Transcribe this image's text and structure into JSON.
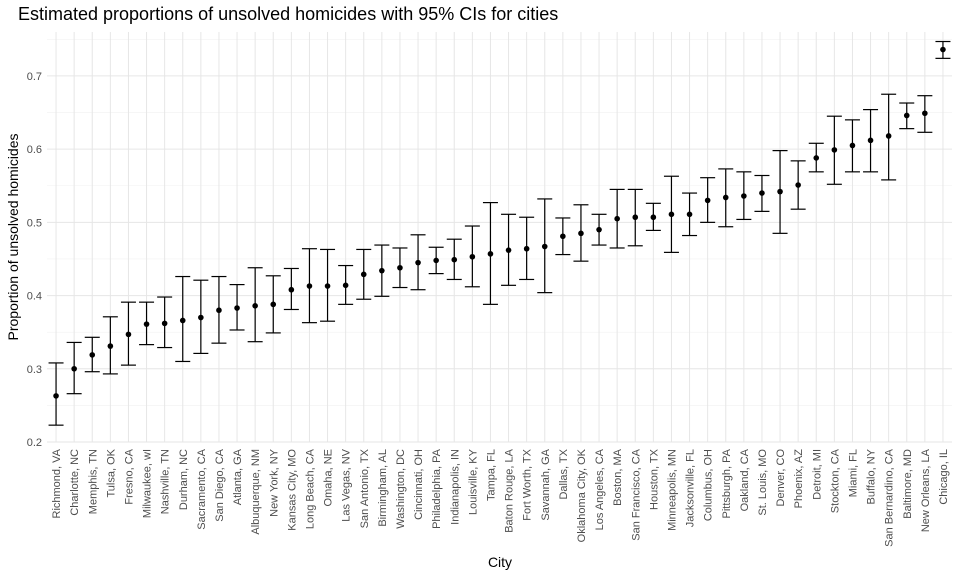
{
  "chart_data": {
    "type": "scatter",
    "title": "Estimated proportions of unsolved homicides with 95% CIs for cities",
    "xlabel": "City",
    "ylabel": "Proportion of unsolved homicides",
    "ylim": [
      0.2,
      0.76
    ],
    "yticks": [
      0.2,
      0.3,
      0.4,
      0.5,
      0.6,
      0.7
    ],
    "ytick_labels": [
      "0.2",
      "0.3",
      "0.4",
      "0.5",
      "0.6",
      "0.7"
    ],
    "grid": true,
    "error_bars": "95% CI",
    "points": [
      {
        "city": "Richmond, VA",
        "estimate": 0.263,
        "lower": 0.223,
        "upper": 0.308
      },
      {
        "city": "Charlotte, NC",
        "estimate": 0.3,
        "lower": 0.266,
        "upper": 0.336
      },
      {
        "city": "Memphis, TN",
        "estimate": 0.319,
        "lower": 0.296,
        "upper": 0.343
      },
      {
        "city": "Tulsa, OK",
        "estimate": 0.331,
        "lower": 0.293,
        "upper": 0.371
      },
      {
        "city": "Fresno, CA",
        "estimate": 0.347,
        "lower": 0.305,
        "upper": 0.391
      },
      {
        "city": "Milwaukee, wI",
        "estimate": 0.361,
        "lower": 0.333,
        "upper": 0.391
      },
      {
        "city": "Nashville, TN",
        "estimate": 0.362,
        "lower": 0.329,
        "upper": 0.398
      },
      {
        "city": "Durham, NC",
        "estimate": 0.366,
        "lower": 0.31,
        "upper": 0.426
      },
      {
        "city": "Sacramento, CA",
        "estimate": 0.37,
        "lower": 0.321,
        "upper": 0.421
      },
      {
        "city": "San Diego, CA",
        "estimate": 0.38,
        "lower": 0.335,
        "upper": 0.426
      },
      {
        "city": "Atlanta, GA",
        "estimate": 0.383,
        "lower": 0.353,
        "upper": 0.415
      },
      {
        "city": "Albuquerque, NM",
        "estimate": 0.386,
        "lower": 0.337,
        "upper": 0.438
      },
      {
        "city": "New York, NY",
        "estimate": 0.388,
        "lower": 0.349,
        "upper": 0.427
      },
      {
        "city": "Kansas City, MO",
        "estimate": 0.408,
        "lower": 0.381,
        "upper": 0.437
      },
      {
        "city": "Long Beach, CA",
        "estimate": 0.413,
        "lower": 0.363,
        "upper": 0.464
      },
      {
        "city": "Omaha, NE",
        "estimate": 0.413,
        "lower": 0.365,
        "upper": 0.463
      },
      {
        "city": "Las Vegas, NV",
        "estimate": 0.414,
        "lower": 0.388,
        "upper": 0.441
      },
      {
        "city": "San Antonio, TX",
        "estimate": 0.429,
        "lower": 0.395,
        "upper": 0.463
      },
      {
        "city": "Birmingham, AL",
        "estimate": 0.434,
        "lower": 0.399,
        "upper": 0.469
      },
      {
        "city": "Washington, DC",
        "estimate": 0.438,
        "lower": 0.411,
        "upper": 0.465
      },
      {
        "city": "Cincinnati, OH",
        "estimate": 0.445,
        "lower": 0.408,
        "upper": 0.483
      },
      {
        "city": "Philadelphia, PA",
        "estimate": 0.448,
        "lower": 0.43,
        "upper": 0.466
      },
      {
        "city": "Indianapolis, IN",
        "estimate": 0.449,
        "lower": 0.422,
        "upper": 0.477
      },
      {
        "city": "Louisville, KY",
        "estimate": 0.453,
        "lower": 0.412,
        "upper": 0.495
      },
      {
        "city": "Tampa, FL",
        "estimate": 0.457,
        "lower": 0.388,
        "upper": 0.527
      },
      {
        "city": "Baton Rouge, LA",
        "estimate": 0.462,
        "lower": 0.414,
        "upper": 0.511
      },
      {
        "city": "Fort Worth, TX",
        "estimate": 0.464,
        "lower": 0.422,
        "upper": 0.507
      },
      {
        "city": "Savannah, GA",
        "estimate": 0.467,
        "lower": 0.404,
        "upper": 0.532
      },
      {
        "city": "Dallas, TX",
        "estimate": 0.481,
        "lower": 0.456,
        "upper": 0.506
      },
      {
        "city": "Oklahoma City, OK",
        "estimate": 0.485,
        "lower": 0.447,
        "upper": 0.524
      },
      {
        "city": "Los Angeles, CA",
        "estimate": 0.49,
        "lower": 0.469,
        "upper": 0.511
      },
      {
        "city": "Boston, MA",
        "estimate": 0.505,
        "lower": 0.465,
        "upper": 0.545
      },
      {
        "city": "San Francisco, CA",
        "estimate": 0.507,
        "lower": 0.468,
        "upper": 0.545
      },
      {
        "city": "Houston, TX",
        "estimate": 0.507,
        "lower": 0.489,
        "upper": 0.526
      },
      {
        "city": "Minneapolis, MN",
        "estimate": 0.511,
        "lower": 0.459,
        "upper": 0.563
      },
      {
        "city": "Jacksonville, FL",
        "estimate": 0.511,
        "lower": 0.482,
        "upper": 0.54
      },
      {
        "city": "Columbus, OH",
        "estimate": 0.53,
        "lower": 0.5,
        "upper": 0.561
      },
      {
        "city": "Pittsburgh, PA",
        "estimate": 0.534,
        "lower": 0.494,
        "upper": 0.573
      },
      {
        "city": "Oakland, CA",
        "estimate": 0.536,
        "lower": 0.504,
        "upper": 0.569
      },
      {
        "city": "St. Louis, MO",
        "estimate": 0.54,
        "lower": 0.515,
        "upper": 0.564
      },
      {
        "city": "Denver, CO",
        "estimate": 0.542,
        "lower": 0.485,
        "upper": 0.598
      },
      {
        "city": "Phoenix, AZ",
        "estimate": 0.551,
        "lower": 0.518,
        "upper": 0.584
      },
      {
        "city": "Detroit, MI",
        "estimate": 0.588,
        "lower": 0.569,
        "upper": 0.608
      },
      {
        "city": "Stockton, CA",
        "estimate": 0.599,
        "lower": 0.552,
        "upper": 0.645
      },
      {
        "city": "Miami, FL",
        "estimate": 0.605,
        "lower": 0.569,
        "upper": 0.64
      },
      {
        "city": "Buffalo, NY",
        "estimate": 0.612,
        "lower": 0.569,
        "upper": 0.654
      },
      {
        "city": "San Bernardino, CA",
        "estimate": 0.618,
        "lower": 0.558,
        "upper": 0.675
      },
      {
        "city": "Baltimore, MD",
        "estimate": 0.646,
        "lower": 0.628,
        "upper": 0.663
      },
      {
        "city": "New Orleans, LA",
        "estimate": 0.649,
        "lower": 0.623,
        "upper": 0.673
      },
      {
        "city": "Chicago, IL",
        "estimate": 0.736,
        "lower": 0.724,
        "upper": 0.747
      }
    ]
  }
}
